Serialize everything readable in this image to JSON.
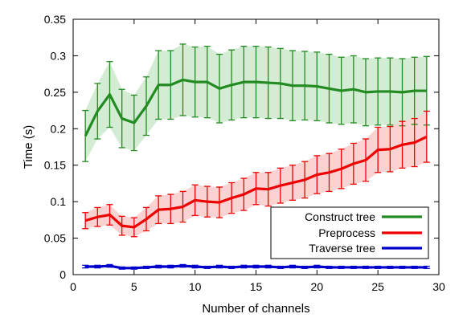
{
  "chart_data": {
    "type": "line",
    "xlabel": "Number of channels",
    "ylabel": "Time (s)",
    "xlim": [
      0,
      30
    ],
    "ylim": [
      0,
      0.35
    ],
    "xticks": [
      "0",
      "5",
      "10",
      "15",
      "20",
      "25",
      "30"
    ],
    "xtick_values": [
      0,
      5,
      10,
      15,
      20,
      25,
      30
    ],
    "yticks": [
      "0",
      "0.05",
      "0.1",
      "0.15",
      "0.2",
      "0.25",
      "0.3",
      "0.35"
    ],
    "ytick_values": [
      0,
      0.05,
      0.1,
      0.15,
      0.2,
      0.25,
      0.3,
      0.35
    ],
    "legend_position": "bottom-right",
    "x": [
      1,
      2,
      3,
      4,
      5,
      6,
      7,
      8,
      9,
      10,
      11,
      12,
      13,
      14,
      15,
      16,
      17,
      18,
      19,
      20,
      21,
      22,
      23,
      24,
      25,
      26,
      27,
      28,
      29
    ],
    "series": [
      {
        "name": "Construct tree",
        "color": "#228b22",
        "band_color": "#d4ebd4",
        "values": [
          0.19,
          0.224,
          0.247,
          0.214,
          0.208,
          0.231,
          0.26,
          0.26,
          0.267,
          0.264,
          0.264,
          0.255,
          0.26,
          0.264,
          0.264,
          0.263,
          0.262,
          0.259,
          0.259,
          0.258,
          0.255,
          0.252,
          0.254,
          0.25,
          0.251,
          0.251,
          0.25,
          0.252,
          0.252
        ],
        "error": [
          0.035,
          0.038,
          0.045,
          0.04,
          0.038,
          0.04,
          0.047,
          0.047,
          0.049,
          0.048,
          0.049,
          0.047,
          0.048,
          0.049,
          0.049,
          0.049,
          0.048,
          0.048,
          0.047,
          0.047,
          0.047,
          0.046,
          0.046,
          0.046,
          0.046,
          0.046,
          0.046,
          0.046,
          0.047
        ]
      },
      {
        "name": "Preprocess",
        "color": "#ee0000",
        "band_color": "#fad2d2",
        "values": [
          0.074,
          0.079,
          0.082,
          0.067,
          0.065,
          0.076,
          0.089,
          0.09,
          0.093,
          0.102,
          0.1,
          0.099,
          0.105,
          0.11,
          0.118,
          0.117,
          0.122,
          0.126,
          0.13,
          0.137,
          0.14,
          0.145,
          0.152,
          0.157,
          0.171,
          0.172,
          0.178,
          0.181,
          0.189
        ],
        "error": [
          0.011,
          0.013,
          0.014,
          0.013,
          0.013,
          0.016,
          0.019,
          0.02,
          0.021,
          0.021,
          0.021,
          0.021,
          0.021,
          0.022,
          0.022,
          0.023,
          0.024,
          0.024,
          0.025,
          0.026,
          0.026,
          0.027,
          0.028,
          0.029,
          0.031,
          0.031,
          0.032,
          0.033,
          0.035
        ]
      },
      {
        "name": "Traverse tree",
        "color": "#0000cc",
        "band_color": "#d2d2f5",
        "values": [
          0.011,
          0.011,
          0.012,
          0.009,
          0.009,
          0.01,
          0.011,
          0.011,
          0.012,
          0.011,
          0.01,
          0.011,
          0.01,
          0.011,
          0.011,
          0.011,
          0.01,
          0.011,
          0.01,
          0.011,
          0.01,
          0.01,
          0.01,
          0.01,
          0.01,
          0.01,
          0.01,
          0.01,
          0.01
        ],
        "error": [
          0.0018,
          0.0018,
          0.0018,
          0.0015,
          0.0015,
          0.0015,
          0.0018,
          0.0018,
          0.0018,
          0.0018,
          0.0015,
          0.0018,
          0.0015,
          0.0018,
          0.0018,
          0.0018,
          0.0015,
          0.0018,
          0.0015,
          0.0018,
          0.0015,
          0.0015,
          0.0015,
          0.0015,
          0.0015,
          0.0015,
          0.0015,
          0.0015,
          0.0015
        ]
      }
    ]
  }
}
